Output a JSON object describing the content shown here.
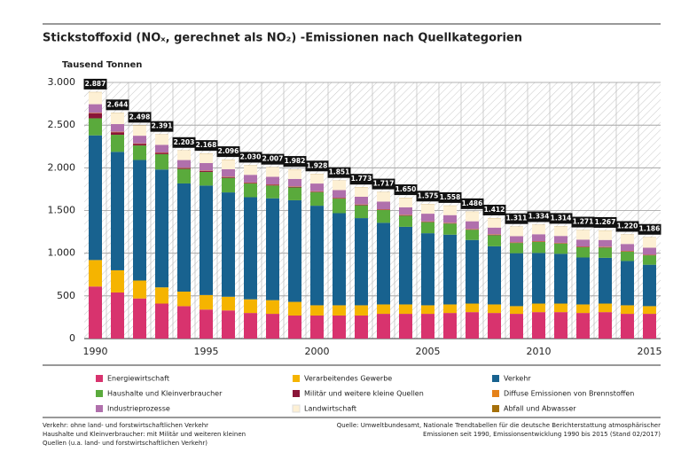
{
  "chart_data": {
    "type": "stacked_bar",
    "title": "Stickstoffoxid (NOₓ, gerechnet als NO₂) -Emissionen nach Quellkategorien",
    "y_label": "Tausend Tonnen",
    "categories": [
      "1990",
      null,
      null,
      null,
      null,
      "1995",
      null,
      null,
      null,
      null,
      "2000",
      null,
      null,
      null,
      null,
      "2005",
      null,
      null,
      null,
      null,
      "2010",
      null,
      null,
      null,
      null,
      "2015"
    ],
    "ylim": [
      0,
      3000
    ],
    "yticks": [
      0,
      500,
      {
        "value": 1000,
        "label": "1.000"
      },
      {
        "value": 1500,
        "label": "1.500"
      },
      {
        "value": 2000,
        "label": "2.000"
      },
      {
        "value": 2500,
        "label": "2.500"
      },
      {
        "value": 3000,
        "label": "3.000"
      }
    ],
    "grid": true,
    "series": [
      {
        "name": "Energiewirtschaft",
        "color": "#d8336e",
        "values": [
          610,
          540,
          470,
          410,
          380,
          340,
          330,
          300,
          290,
          270,
          270,
          270,
          270,
          290,
          290,
          290,
          300,
          310,
          300,
          290,
          310,
          310,
          300,
          310,
          290,
          290
        ]
      },
      {
        "name": "Verarbeitendes Gewerbe",
        "color": "#f5b400",
        "values": [
          310,
          260,
          210,
          190,
          170,
          170,
          160,
          160,
          160,
          160,
          120,
          120,
          120,
          110,
          110,
          100,
          100,
          100,
          100,
          90,
          100,
          100,
          100,
          100,
          100,
          90
        ]
      },
      {
        "name": "Verkehr",
        "color": "#18628f",
        "values": [
          1460,
          1387,
          1412,
          1380,
          1267,
          1282,
          1222,
          1196,
          1193,
          1190,
          1166,
          1079,
          1021,
          956,
          909,
          844,
          817,
          745,
          681,
          620,
          593,
          583,
          550,
          536,
          519,
          485
        ]
      },
      {
        "name": "Haushalte und Kleinverbraucher",
        "color": "#5aaa3c",
        "values": [
          200,
          200,
          170,
          180,
          170,
          160,
          170,
          160,
          150,
          150,
          160,
          170,
          150,
          150,
          130,
          130,
          130,
          120,
          130,
          120,
          130,
          120,
          120,
          120,
          110,
          110
        ]
      },
      {
        "name": "Militär und weitere kleine Quellen",
        "color": "#8a1538",
        "values": [
          60,
          30,
          20,
          15,
          10,
          10,
          8,
          8,
          8,
          6,
          6,
          6,
          6,
          5,
          5,
          5,
          5,
          5,
          5,
          5,
          5,
          5,
          5,
          5,
          5,
          5
        ]
      },
      {
        "name": "Diffuse Emissionen von Brennstoffen",
        "color": "#e5821a",
        "values": [
          5,
          5,
          4,
          4,
          4,
          4,
          4,
          4,
          4,
          4,
          4,
          4,
          4,
          4,
          4,
          4,
          4,
          4,
          4,
          4,
          4,
          4,
          4,
          4,
          4,
          4
        ]
      },
      {
        "name": "Industrieprozesse",
        "color": "#b070ac",
        "values": [
          100,
          90,
          90,
          90,
          90,
          90,
          90,
          90,
          90,
          90,
          90,
          90,
          90,
          90,
          90,
          90,
          90,
          90,
          80,
          70,
          80,
          80,
          80,
          80,
          80,
          80
        ]
      },
      {
        "name": "Landwirtschaft",
        "color": "#fdf0d4",
        "values": [
          140,
          130,
          120,
          120,
          110,
          110,
          110,
          110,
          110,
          110,
          110,
          110,
          110,
          110,
          110,
          110,
          110,
          110,
          110,
          110,
          110,
          110,
          110,
          110,
          110,
          120
        ]
      },
      {
        "name": "Abfall und Abwasser",
        "color": "#a5700a",
        "values": [
          2,
          2,
          2,
          2,
          2,
          2,
          2,
          2,
          2,
          2,
          2,
          2,
          2,
          2,
          2,
          2,
          2,
          2,
          2,
          2,
          2,
          2,
          2,
          2,
          2,
          2
        ]
      }
    ],
    "totals": {
      "values": [
        2887,
        2644,
        2498,
        2391,
        2203,
        2168,
        2096,
        2030,
        2007,
        1982,
        1928,
        1851,
        1773,
        1717,
        1650,
        1575,
        1558,
        1486,
        1412,
        1311,
        1334,
        1314,
        1271,
        1267,
        1220,
        1186
      ],
      "value_labels": [
        "2.887",
        "2.644",
        "2.498",
        "2.391",
        "2.203",
        "2.168",
        "2.096",
        "2.030",
        "2.007",
        "1.982",
        "1.928",
        "1.851",
        "1.773",
        "1.717",
        "1.650",
        "1.575",
        "1.558",
        "1.486",
        "1.412",
        "1.311",
        "1.334",
        "1.314",
        "1.271",
        "1.267",
        "1.220",
        "1.186"
      ]
    },
    "notes": [
      "Verkehr: ohne land- und forstwirtschaftlichen Verkehr",
      "Haushalte und Kleinverbraucher: mit Militär und weiteren kleinen",
      "Quellen (u.a. land- und forstwirtschaftlichen Verkehr)"
    ],
    "source": [
      "Quelle: Umweltbundesamt, Nationale Trendtabellen für die deutsche Berichterstattung atmosphärischer",
      "Emissionen seit 1990, Emissionsentwicklung 1990 bis 2015 (Stand 02/2017)"
    ]
  }
}
